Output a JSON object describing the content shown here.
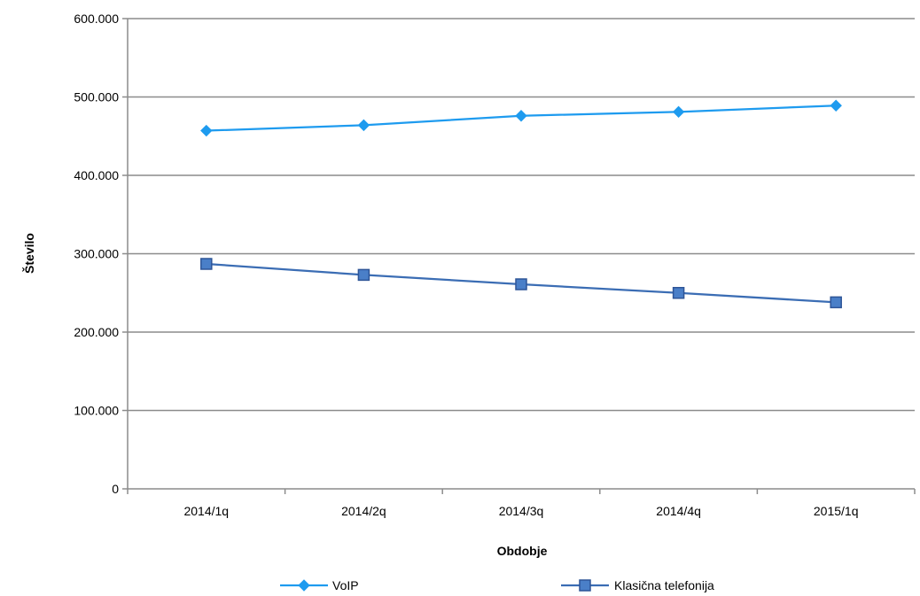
{
  "chart_data": {
    "type": "line",
    "title": "",
    "xlabel": "Obdobje",
    "ylabel": "Število",
    "categories": [
      "2014/1q",
      "2014/2q",
      "2014/3q",
      "2014/4q",
      "2015/1q"
    ],
    "ylim": [
      0,
      600000
    ],
    "yticks": [
      0,
      100000,
      200000,
      300000,
      400000,
      500000,
      600000
    ],
    "ytick_labels": [
      "0",
      "100.000",
      "200.000",
      "300.000",
      "400.000",
      "500.000",
      "600.000"
    ],
    "grid": true,
    "legend_position": "bottom",
    "series": [
      {
        "name": "VoIP",
        "values": [
          457000,
          464000,
          476000,
          481000,
          489000
        ],
        "color": "#1e9bef",
        "marker": "diamond"
      },
      {
        "name": "Klasična telefonija",
        "values": [
          287000,
          273000,
          261000,
          250000,
          238000
        ],
        "color": "#3b6db4",
        "marker": "square"
      }
    ]
  }
}
